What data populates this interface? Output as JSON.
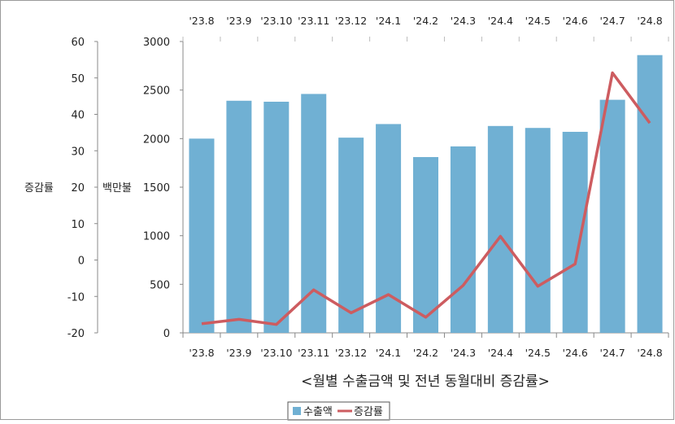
{
  "chart_data": {
    "type": "bar+line",
    "title": "<월별 수출금액 및 전년 동월대비 증감률>",
    "categories": [
      "'23.8",
      "'23.9",
      "'23.10",
      "'23.11",
      "'23.12",
      "'24.1",
      "'24.2",
      "'24.3",
      "'24.4",
      "'24.5",
      "'24.6",
      "'24.7",
      "'24.8"
    ],
    "series": [
      {
        "name": "수출액",
        "type": "bar",
        "axis": "left-inner",
        "color": "#70b0d3",
        "values": [
          2000,
          2390,
          2380,
          2460,
          2010,
          2150,
          1810,
          1920,
          2130,
          2110,
          2070,
          2400,
          2860
        ]
      },
      {
        "name": "증감률",
        "type": "line",
        "axis": "left-outer",
        "color": "#cd5c60",
        "values": [
          -17.5,
          -16.3,
          -17.7,
          -8.2,
          -14.5,
          -9.5,
          -15.7,
          -7.0,
          6.5,
          -7.2,
          -1.1,
          51.4,
          37.6
        ]
      }
    ],
    "axes": {
      "primary": {
        "label": "백만불",
        "min": 0,
        "max": 3000,
        "ticks": [
          0,
          500,
          1000,
          1500,
          2000,
          2500,
          3000
        ]
      },
      "secondary": {
        "label": "증감률",
        "min": -20,
        "max": 60,
        "ticks": [
          -20,
          -10,
          0,
          10,
          20,
          30,
          40,
          50,
          60
        ]
      }
    },
    "legend": {
      "position": "bottom-left",
      "entries": [
        "수출액",
        "증감률"
      ]
    },
    "grid": false
  }
}
